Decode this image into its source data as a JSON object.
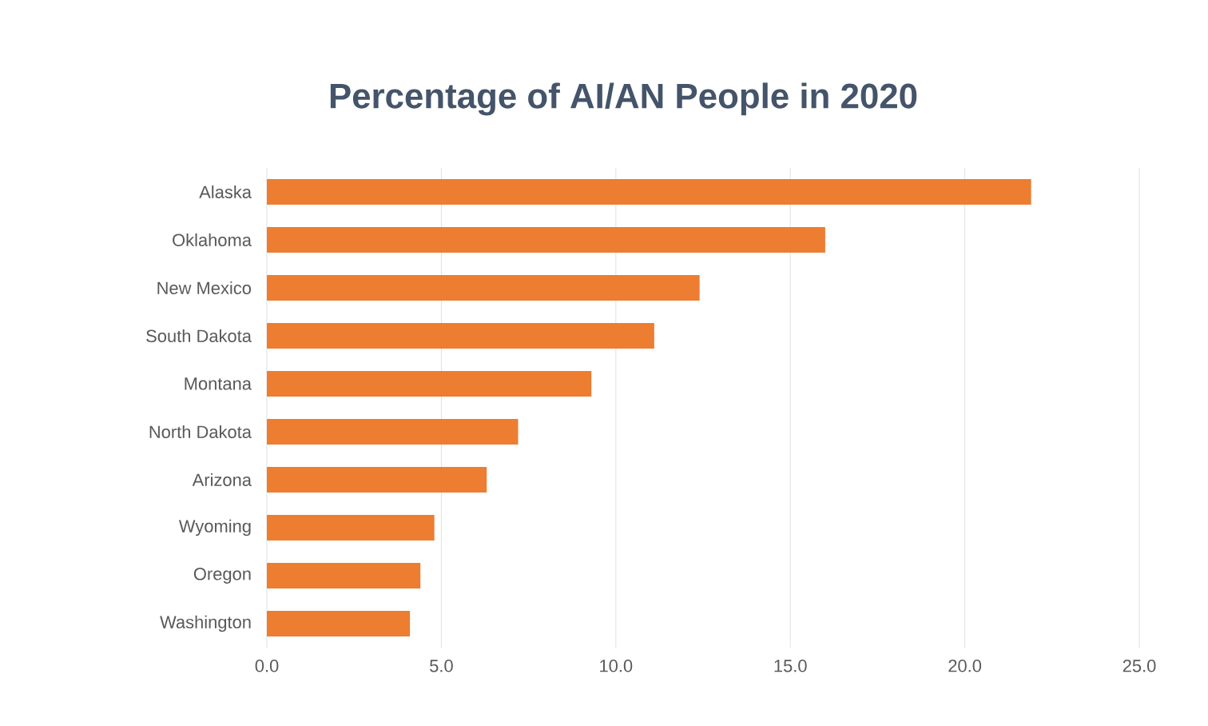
{
  "chart_data": {
    "type": "bar",
    "orientation": "horizontal",
    "title": "Percentage of AI/AN People in 2020",
    "categories": [
      "Alaska",
      "Oklahoma",
      "New Mexico",
      "South Dakota",
      "Montana",
      "North Dakota",
      "Arizona",
      "Wyoming",
      "Oregon",
      "Washington"
    ],
    "values": [
      21.9,
      16.0,
      12.4,
      11.1,
      9.3,
      7.2,
      6.3,
      4.8,
      4.4,
      4.1
    ],
    "color": "#ed7d31",
    "xlim": [
      0,
      25
    ],
    "xticks": [
      {
        "value": 0,
        "label": "0.0"
      },
      {
        "value": 5,
        "label": "5.0"
      },
      {
        "value": 10,
        "label": "10.0"
      },
      {
        "value": 15,
        "label": "15.0"
      },
      {
        "value": 20,
        "label": "20.0"
      },
      {
        "value": 25,
        "label": "25.0"
      }
    ],
    "grid": "x"
  }
}
